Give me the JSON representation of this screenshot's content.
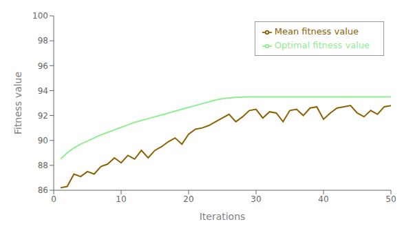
{
  "chart_data": {
    "type": "line",
    "xlabel": "Iterations",
    "ylabel": "Fitness value",
    "x": [
      1,
      2,
      3,
      4,
      5,
      6,
      7,
      8,
      9,
      10,
      11,
      12,
      13,
      14,
      15,
      16,
      17,
      18,
      19,
      20,
      21,
      22,
      23,
      24,
      25,
      26,
      27,
      28,
      29,
      30,
      31,
      32,
      33,
      34,
      35,
      36,
      37,
      38,
      39,
      40,
      41,
      42,
      43,
      44,
      45,
      46,
      47,
      48,
      49,
      50
    ],
    "series": [
      {
        "name": "Optimal fitness value",
        "color": "#90EE90",
        "values": [
          88.5,
          89.0,
          89.4,
          89.7,
          89.95,
          90.2,
          90.45,
          90.65,
          90.85,
          91.05,
          91.25,
          91.45,
          91.6,
          91.75,
          91.9,
          92.05,
          92.2,
          92.35,
          92.5,
          92.65,
          92.8,
          92.95,
          93.1,
          93.25,
          93.35,
          93.42,
          93.46,
          93.48,
          93.5,
          93.5,
          93.5,
          93.5,
          93.5,
          93.5,
          93.5,
          93.5,
          93.5,
          93.5,
          93.5,
          93.5,
          93.5,
          93.5,
          93.5,
          93.5,
          93.5,
          93.5,
          93.5,
          93.5,
          93.5,
          93.5
        ]
      },
      {
        "name": "Mean fitness value",
        "color": "#8B6000",
        "values": [
          86.2,
          86.3,
          87.3,
          87.1,
          87.5,
          87.3,
          87.9,
          88.1,
          88.6,
          88.2,
          88.8,
          88.5,
          89.2,
          88.6,
          89.2,
          89.5,
          89.9,
          90.2,
          89.7,
          90.5,
          90.9,
          91.0,
          91.2,
          91.5,
          91.8,
          92.1,
          91.5,
          91.9,
          92.4,
          92.5,
          91.8,
          92.3,
          92.2,
          91.5,
          92.4,
          92.5,
          92.0,
          92.6,
          92.7,
          91.7,
          92.2,
          92.6,
          92.7,
          92.8,
          92.2,
          91.9,
          92.4,
          92.1,
          92.7,
          92.8
        ]
      }
    ],
    "xlim": [
      0,
      50
    ],
    "ylim": [
      86,
      100
    ],
    "xticks": [
      0,
      10,
      20,
      30,
      40,
      50
    ],
    "yticks": [
      86,
      88,
      90,
      92,
      94,
      96,
      98,
      100
    ],
    "grid": false,
    "legend": "upper right"
  }
}
